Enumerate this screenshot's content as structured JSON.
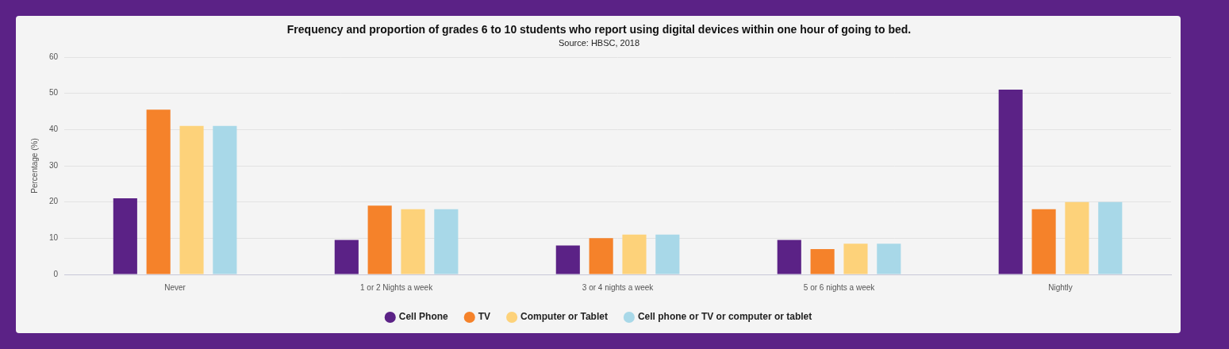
{
  "chart_data": {
    "type": "bar",
    "title": "Frequency and proportion of grades 6 to 10 students who report using digital devices within one hour of going to bed.",
    "subtitle": "Source: HBSC, 2018",
    "y_label": "Percentage (%)",
    "categories": [
      "Never",
      "1 or 2 Nights a week",
      "3 or 4 nights a week",
      "5 or 6 nights a week",
      "Nightly"
    ],
    "series": [
      {
        "name": "Cell Phone",
        "color": "#5b2286",
        "values": [
          21,
          9.5,
          8,
          9.5,
          51
        ]
      },
      {
        "name": "TV",
        "color": "#f5822a",
        "values": [
          45.5,
          19,
          10,
          7,
          18
        ]
      },
      {
        "name": "Computer or Tablet",
        "color": "#fdd27a",
        "values": [
          41,
          18,
          11,
          8.5,
          20
        ]
      },
      {
        "name": "Cell phone or TV or computer or tablet",
        "color": "#a8d8e8",
        "values": [
          41,
          18,
          11,
          8.5,
          20
        ]
      }
    ],
    "ylim": [
      0,
      60
    ],
    "yticks": [
      0,
      10,
      20,
      30,
      40,
      50,
      60
    ],
    "grid": true,
    "legend": "bottom"
  }
}
